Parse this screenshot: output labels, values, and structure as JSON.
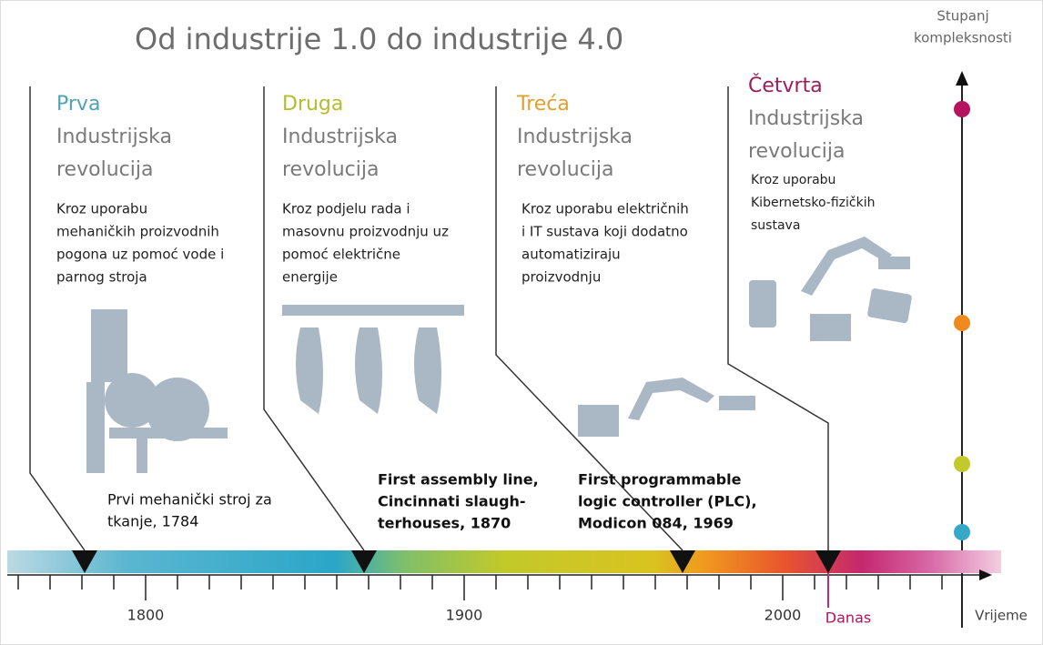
{
  "header": {
    "title": "Od industrije 1.0 do industrije 4.0"
  },
  "y_axis": {
    "label_lines": [
      "Stupanj",
      "kompleksnosti"
    ]
  },
  "x_axis": {
    "label": "Vrijeme",
    "years": [
      "1800",
      "1900",
      "2000"
    ],
    "today": "Danas"
  },
  "revolutions": [
    {
      "ordinal": "Prva",
      "heading_lines": [
        "Industrijska",
        "revolucija"
      ],
      "description_lines": [
        "Kroz uporabu",
        "mehaničkih proizvodnih",
        "pogona uz pomoć vode i",
        "parnog stroja"
      ],
      "milestone_lines": [
        "Prvi mehanički stroj za",
        "tkanje, 1784"
      ]
    },
    {
      "ordinal": "Druga",
      "heading_lines": [
        "Industrijska",
        "revolucija"
      ],
      "description_lines": [
        "Kroz podjelu rada i",
        "masovnu proizvodnju uz",
        "pomoć električne",
        "energije"
      ],
      "milestone_lines": [
        "First assembly line,",
        "Cincinnati slaugh-",
        "terhouses, 1870"
      ]
    },
    {
      "ordinal": "Treća",
      "heading_lines": [
        "Industrijska",
        "revolucija"
      ],
      "description_lines": [
        "Kroz uporabu električnih",
        "i IT sustava koji dodatno",
        "automatiziraju",
        "proizvodnju"
      ],
      "milestone_lines": [
        "First programmable",
        "logic controller (PLC),",
        "Modicon 084, 1969"
      ]
    },
    {
      "ordinal": "Četvrta",
      "heading_lines": [
        "Industrijska",
        "revolucija"
      ],
      "description_lines": [
        "Kroz uporabu",
        "Kibernetsko-fizičkih",
        "sustava"
      ],
      "milestone_lines": []
    }
  ]
}
